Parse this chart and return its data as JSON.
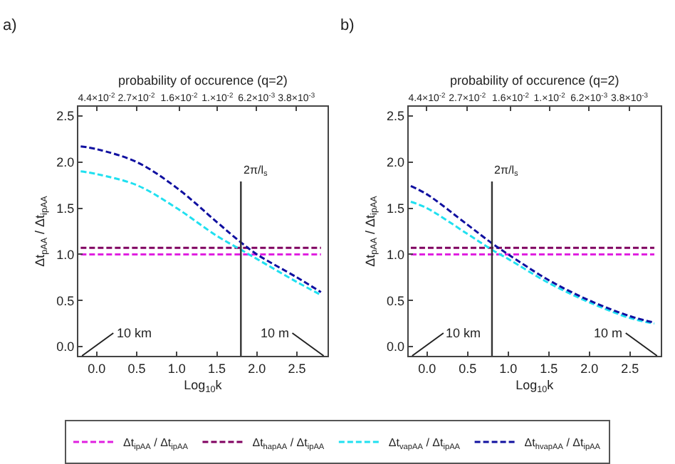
{
  "chart_data": [
    {
      "type": "line",
      "title": "a)",
      "xlabel": "Log$_{10}$k",
      "ylabel": "Δt$_{pAA}$ / Δt$_{ipAA}$",
      "x2label": "probability of occurence (q=2)",
      "xlim": [
        -0.23,
        2.88
      ],
      "xticks": [
        {
          "value": 0,
          "label": "0.0"
        },
        0.5,
        {
          "value": 1,
          "label": "1.0"
        },
        1.5,
        {
          "value": 2,
          "label": "2.0"
        },
        2.5
      ],
      "x2lim": [
        0.055,
        0.0026
      ],
      "x2ticks": [
        {
          "value": 0.044,
          "label": "4.4×10$^{-2}$"
        },
        {
          "value": 0.027,
          "label": "2.7×10$^{-2}$"
        },
        {
          "value": 0.016,
          "label": "1.6×10$^{-2}$"
        },
        {
          "value": 0.01,
          "label": "1.×10$^{-2}$"
        },
        {
          "value": 0.0062,
          "label": "6.2×10$^{-3}$"
        },
        {
          "value": 0.0038,
          "label": "3.8×10$^{-3}$"
        }
      ],
      "ylim": [
        -0.1,
        2.6
      ],
      "yticks": [
        {
          "value": 0,
          "label": "0.0"
        },
        0.5,
        {
          "value": 1,
          "label": "1.0"
        },
        1.5,
        {
          "value": 2,
          "label": "2.0"
        },
        2.5
      ],
      "line_style": "dashed",
      "marker": "none",
      "legend": "bottom",
      "log": "x2",
      "series": [
        {
          "name": "Δt$_{ipAA}$ / Δt$_{ipAA}$",
          "color": "#e020e0",
          "x": [
            -0.2,
            2.8
          ],
          "values": [
            1.0,
            1.0
          ]
        },
        {
          "name": "Δt$_{hapAA}$ / Δt$_{ipAA}$",
          "color": "#800060",
          "x": [
            -0.2,
            2.8
          ],
          "values": [
            1.07,
            1.07
          ]
        },
        {
          "name": "Δt$_{vapAA}$ / Δt$_{ipAA}$",
          "color": "#20e0f0",
          "x": [
            -0.2,
            0,
            0.5,
            1.0,
            1.5,
            1.8,
            2.0,
            2.5,
            2.8
          ],
          "values": [
            1.9,
            1.87,
            1.75,
            1.5,
            1.2,
            1.05,
            0.95,
            0.7,
            0.56
          ]
        },
        {
          "name": "Δt$_{hvapAA}$ / Δt$_{ipAA}$",
          "color": "#1010a0",
          "x": [
            -0.2,
            0,
            0.5,
            1.0,
            1.5,
            1.8,
            2.0,
            2.5,
            2.8
          ],
          "values": [
            2.17,
            2.14,
            2.0,
            1.72,
            1.35,
            1.13,
            1.0,
            0.75,
            0.59
          ]
        }
      ],
      "ref_lines": [
        {
          "axis": "x",
          "value": 1.8,
          "label": "2π/l$_{s}$",
          "color": "#333333",
          "line_style": "solid"
        }
      ],
      "annotations": [
        "10 km",
        "10 m"
      ]
    },
    {
      "type": "line",
      "title": "b)",
      "xlabel": "Log$_{10}$k",
      "ylabel": "Δt$_{pAA}$ / Δt$_{ipAA}$",
      "x2label": "probability of occurence (q=2)",
      "xlim": [
        -0.23,
        2.88
      ],
      "xticks": [
        {
          "value": 0,
          "label": "0.0"
        },
        0.5,
        {
          "value": 1,
          "label": "1.0"
        },
        1.5,
        {
          "value": 2,
          "label": "2.0"
        },
        2.5
      ],
      "x2lim": [
        0.055,
        0.0026
      ],
      "x2ticks": [
        {
          "value": 0.044,
          "label": "4.4×10$^{-2}$"
        },
        {
          "value": 0.027,
          "label": "2.7×10$^{-2}$"
        },
        {
          "value": 0.016,
          "label": "1.6×10$^{-2}$"
        },
        {
          "value": 0.01,
          "label": "1.×10$^{-2}$"
        },
        {
          "value": 0.0062,
          "label": "6.2×10$^{-3}$"
        },
        {
          "value": 0.0038,
          "label": "3.8×10$^{-3}$"
        }
      ],
      "ylim": [
        -0.1,
        2.6
      ],
      "yticks": [
        {
          "value": 0,
          "label": "0.0"
        },
        0.5,
        {
          "value": 1,
          "label": "1.0"
        },
        1.5,
        {
          "value": 2,
          "label": "2.0"
        },
        2.5
      ],
      "line_style": "dashed",
      "marker": "none",
      "log": "x2",
      "series": [
        {
          "color": "#e020e0",
          "x": [
            -0.2,
            2.8
          ],
          "values": [
            1.0,
            1.0
          ]
        },
        {
          "color": "#800060",
          "x": [
            -0.2,
            2.8
          ],
          "values": [
            1.07,
            1.07
          ]
        },
        {
          "color": "#20e0f0",
          "x": [
            -0.2,
            0,
            0.5,
            0.8,
            1.0,
            1.5,
            2.0,
            2.5,
            2.8
          ],
          "values": [
            1.57,
            1.5,
            1.22,
            1.05,
            0.95,
            0.69,
            0.48,
            0.31,
            0.25
          ]
        },
        {
          "color": "#1010a0",
          "x": [
            -0.2,
            0,
            0.5,
            0.8,
            1.0,
            1.5,
            2.0,
            2.5,
            2.8
          ],
          "values": [
            1.74,
            1.65,
            1.32,
            1.12,
            1.0,
            0.72,
            0.5,
            0.33,
            0.26
          ]
        }
      ],
      "ref_lines": [
        {
          "axis": "x",
          "value": 0.8,
          "label": "2π/l$_{s}$",
          "color": "#333333",
          "line_style": "solid"
        }
      ],
      "annotations": [
        "10 km",
        "10 m"
      ]
    }
  ]
}
